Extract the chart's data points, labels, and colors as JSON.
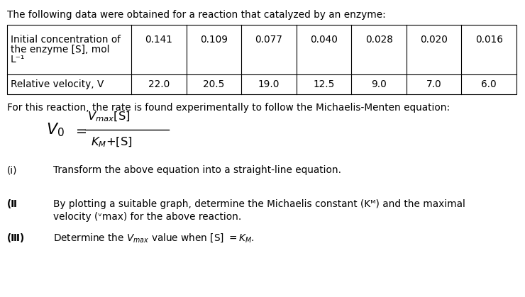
{
  "title_text": "The following data were obtained for a reaction that catalyzed by an enzyme:",
  "row1_label_lines": [
    "Initial concentration of",
    "the enzyme [S], mol",
    "L⁻¹"
  ],
  "row2_label": "Relative velocity, V",
  "row1_values": [
    "0.141",
    "0.109",
    "0.077",
    "0.040",
    "0.028",
    "0.020",
    "0.016"
  ],
  "row2_values": [
    "22.0",
    "20.5",
    "19.0",
    "12.5",
    "9.0",
    "7.0",
    "6.0"
  ],
  "mm_intro": "For this reaction, the rate is found experimentally to follow the Michaelis-Menten equation:",
  "item_i_label": "(i)",
  "item_i_text": "Transform the above equation into a straight-line equation.",
  "item_ii_text_line1": "By plotting a suitable graph, determine the Michaelis constant (Κᴹ) and the maximal",
  "item_ii_text_line2": "velocity (ᵛmax) for the above reaction.",
  "bg_color": "#ffffff",
  "text_color": "#000000",
  "font_size": 9.8
}
